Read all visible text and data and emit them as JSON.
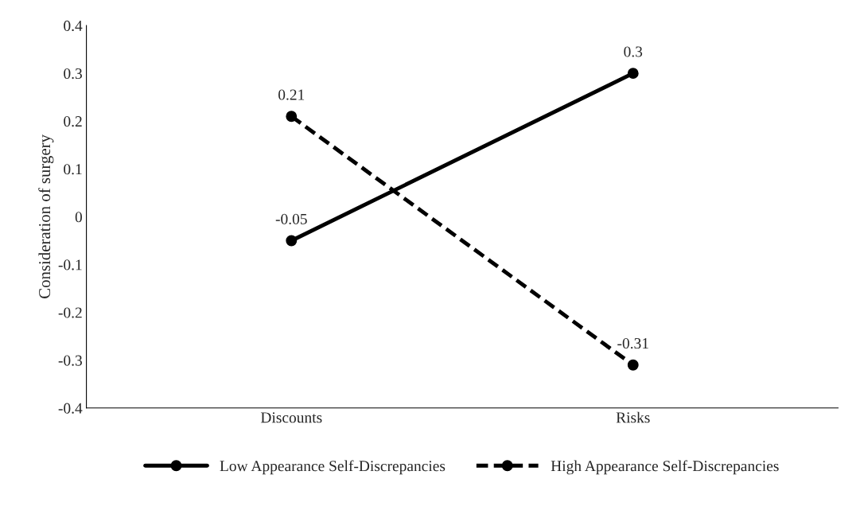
{
  "chart_data": {
    "type": "line",
    "ylabel": "Consideration of surgery",
    "categories": [
      "Discounts",
      "Risks"
    ],
    "series": [
      {
        "name": "Low Appearance Self-Discrepancies",
        "color": "#000000",
        "values": [
          -0.05,
          0.3
        ],
        "line_style": "solid"
      },
      {
        "name": "High Appearance Self-Discrepancies",
        "color": "#000000",
        "values": [
          0.21,
          -0.31
        ],
        "line_style": "dashed"
      }
    ],
    "ylim": [
      -0.4,
      0.4
    ],
    "yticks": [
      -0.4,
      -0.3,
      -0.2,
      -0.1,
      0,
      0.1,
      0.2,
      0.3,
      0.4
    ],
    "marker": "circle",
    "data_labels": true,
    "grid": false,
    "legend": "bottom"
  }
}
